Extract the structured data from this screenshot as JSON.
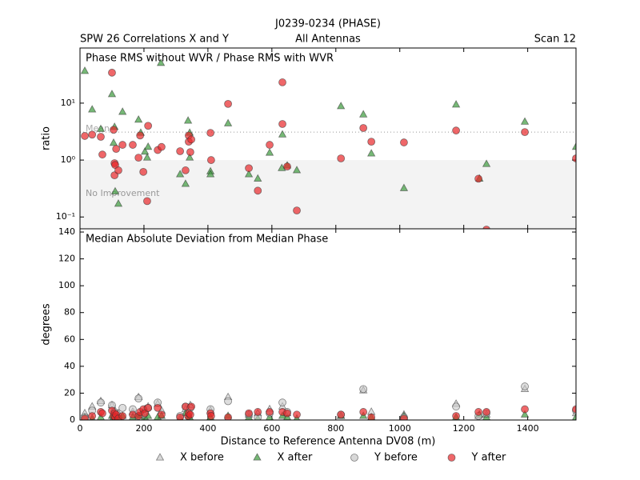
{
  "chart_data": [
    {
      "type": "scatter",
      "title": "J0239-0234 (PHASE)",
      "left_label": "SPW 26 Correlations X and Y",
      "center_label": "All Antennas",
      "right_label": "Scan 12",
      "panel_title": "Phase RMS without WVR / Phase RMS with WVR",
      "ylabel": "ratio",
      "log_y": true,
      "xlim": [
        0,
        1551
      ],
      "xticks": [
        0,
        200,
        400,
        600,
        800,
        1000,
        1200,
        1400
      ],
      "ylim": [
        0.062,
        93
      ],
      "yticks": [
        {
          "value": 0.1,
          "label": "10⁻¹"
        },
        {
          "value": 1,
          "label": "10⁰"
        },
        {
          "value": 10,
          "label": "10¹"
        }
      ],
      "reference_line": {
        "value": 3.1,
        "label": "Mean"
      },
      "shade_below": {
        "value": 1,
        "label": "No Improvement"
      },
      "series": [
        {
          "marker": "triangle",
          "color": "#3c9a3c",
          "x": [
            15,
            38,
            65,
            100,
            108,
            105,
            110,
            120,
            133,
            183,
            190,
            203,
            213,
            210,
            253,
            313,
            330,
            338,
            343,
            343,
            408,
            408,
            463,
            528,
            556,
            593,
            631,
            633,
            648,
            678,
            816,
            886,
            911,
            1013,
            1176,
            1249,
            1271,
            1391,
            1551
          ],
          "values": [
            36.6,
            7.7,
            3.5,
            14.3,
            3.8,
            2.0,
            0.28,
            0.17,
            7.0,
            5.1,
            3.0,
            1.4,
            1.7,
            1.1,
            50.6,
            0.56,
            0.38,
            4.9,
            3.0,
            1.1,
            0.63,
            0.56,
            4.4,
            0.56,
            0.47,
            1.34,
            0.72,
            2.8,
            0.8,
            0.66,
            8.8,
            6.3,
            1.3,
            0.32,
            9.4,
            0.47,
            0.85,
            4.7,
            1.7
          ]
        },
        {
          "marker": "circle",
          "color": "#e8262a",
          "x": [
            15,
            38,
            65,
            70,
            100,
            105,
            108,
            108,
            113,
            110,
            120,
            133,
            165,
            183,
            188,
            198,
            213,
            210,
            243,
            255,
            313,
            330,
            340,
            340,
            348,
            345,
            408,
            410,
            463,
            528,
            556,
            593,
            633,
            633,
            648,
            678,
            816,
            886,
            911,
            1013,
            1176,
            1246,
            1271,
            1391,
            1551
          ],
          "values": [
            2.65,
            2.8,
            2.56,
            1.25,
            34.3,
            3.4,
            0.88,
            0.54,
            1.57,
            0.82,
            0.66,
            1.85,
            1.85,
            1.1,
            2.7,
            0.62,
            4.0,
            0.19,
            1.5,
            1.7,
            1.43,
            0.66,
            2.7,
            2.1,
            2.3,
            1.38,
            3.0,
            1.0,
            9.7,
            0.72,
            0.29,
            1.85,
            23.2,
            4.3,
            0.77,
            0.13,
            1.07,
            3.66,
            2.1,
            2.04,
            3.3,
            0.47,
            0.06,
            3.1,
            1.07
          ]
        }
      ]
    },
    {
      "type": "scatter",
      "panel_title": "Median Absolute Deviation from Median Phase",
      "ylabel": "degrees",
      "xlabel": "Distance to Reference Antenna DV08 (m)",
      "xlim": [
        0,
        1551
      ],
      "xticks": [
        0,
        200,
        400,
        600,
        800,
        1000,
        1200,
        1400
      ],
      "ylim": [
        0,
        142.4
      ],
      "yticks": [
        0,
        20,
        40,
        60,
        80,
        100,
        120,
        140
      ],
      "series": [
        {
          "name": "X before",
          "marker": "triangle",
          "color": "#c8c8c8",
          "x": [
            15,
            38,
            65,
            100,
            108,
            120,
            165,
            183,
            203,
            213,
            243,
            255,
            330,
            345,
            408,
            463,
            528,
            556,
            593,
            633,
            648,
            816,
            886,
            911,
            1013,
            1176,
            1246,
            1271,
            1391,
            1551
          ],
          "values": [
            5,
            10,
            14,
            11,
            4,
            5,
            6,
            17,
            8,
            10,
            12,
            7,
            8,
            11,
            7,
            17,
            4,
            5,
            8,
            10,
            5,
            3,
            22,
            6,
            4,
            12,
            3,
            4,
            23,
            5
          ]
        },
        {
          "name": "X after",
          "marker": "triangle",
          "color": "#3c9a3c",
          "x": [
            15,
            38,
            65,
            100,
            105,
            110,
            120,
            133,
            165,
            183,
            190,
            203,
            213,
            243,
            255,
            313,
            330,
            340,
            343,
            408,
            463,
            528,
            556,
            593,
            633,
            648,
            678,
            816,
            886,
            911,
            1013,
            1176,
            1249,
            1271,
            1391,
            1551
          ],
          "values": [
            2,
            1,
            2,
            3,
            2,
            1,
            2,
            3,
            2,
            3,
            4,
            2,
            3,
            2,
            3,
            1,
            5,
            3,
            2,
            2,
            3,
            2,
            1,
            2,
            3,
            2,
            1,
            3,
            3,
            2,
            3,
            2,
            4,
            2,
            4,
            2
          ]
        },
        {
          "name": "Y before",
          "marker": "circle",
          "color": "#c8c8c8",
          "x": [
            15,
            38,
            65,
            100,
            108,
            133,
            165,
            183,
            198,
            213,
            243,
            313,
            330,
            345,
            408,
            463,
            528,
            556,
            593,
            633,
            648,
            816,
            886,
            1013,
            1176,
            1246,
            1271,
            1391,
            1551
          ],
          "values": [
            2,
            7,
            13,
            11,
            6,
            9,
            8,
            16,
            4,
            9,
            13,
            3,
            10,
            9,
            8,
            14,
            4,
            2,
            5,
            13,
            6,
            4,
            23,
            2,
            10,
            3,
            5,
            25,
            7
          ]
        },
        {
          "name": "Y after",
          "marker": "circle",
          "color": "#e8262a",
          "x": [
            15,
            38,
            65,
            70,
            100,
            105,
            108,
            110,
            113,
            120,
            133,
            165,
            183,
            188,
            198,
            203,
            213,
            243,
            255,
            313,
            330,
            338,
            340,
            345,
            348,
            408,
            410,
            463,
            528,
            556,
            593,
            633,
            648,
            678,
            816,
            886,
            911,
            1013,
            1176,
            1246,
            1271,
            1391,
            1551
          ],
          "values": [
            1,
            3,
            6,
            5,
            7,
            3,
            5,
            2,
            4,
            1,
            3,
            4,
            3,
            6,
            8,
            5,
            9,
            9,
            4,
            2,
            10,
            3,
            5,
            4,
            10,
            5,
            3,
            2,
            5,
            6,
            6,
            6,
            5,
            4,
            4,
            6,
            2,
            1,
            3,
            6,
            6,
            8,
            8
          ]
        }
      ]
    }
  ]
}
